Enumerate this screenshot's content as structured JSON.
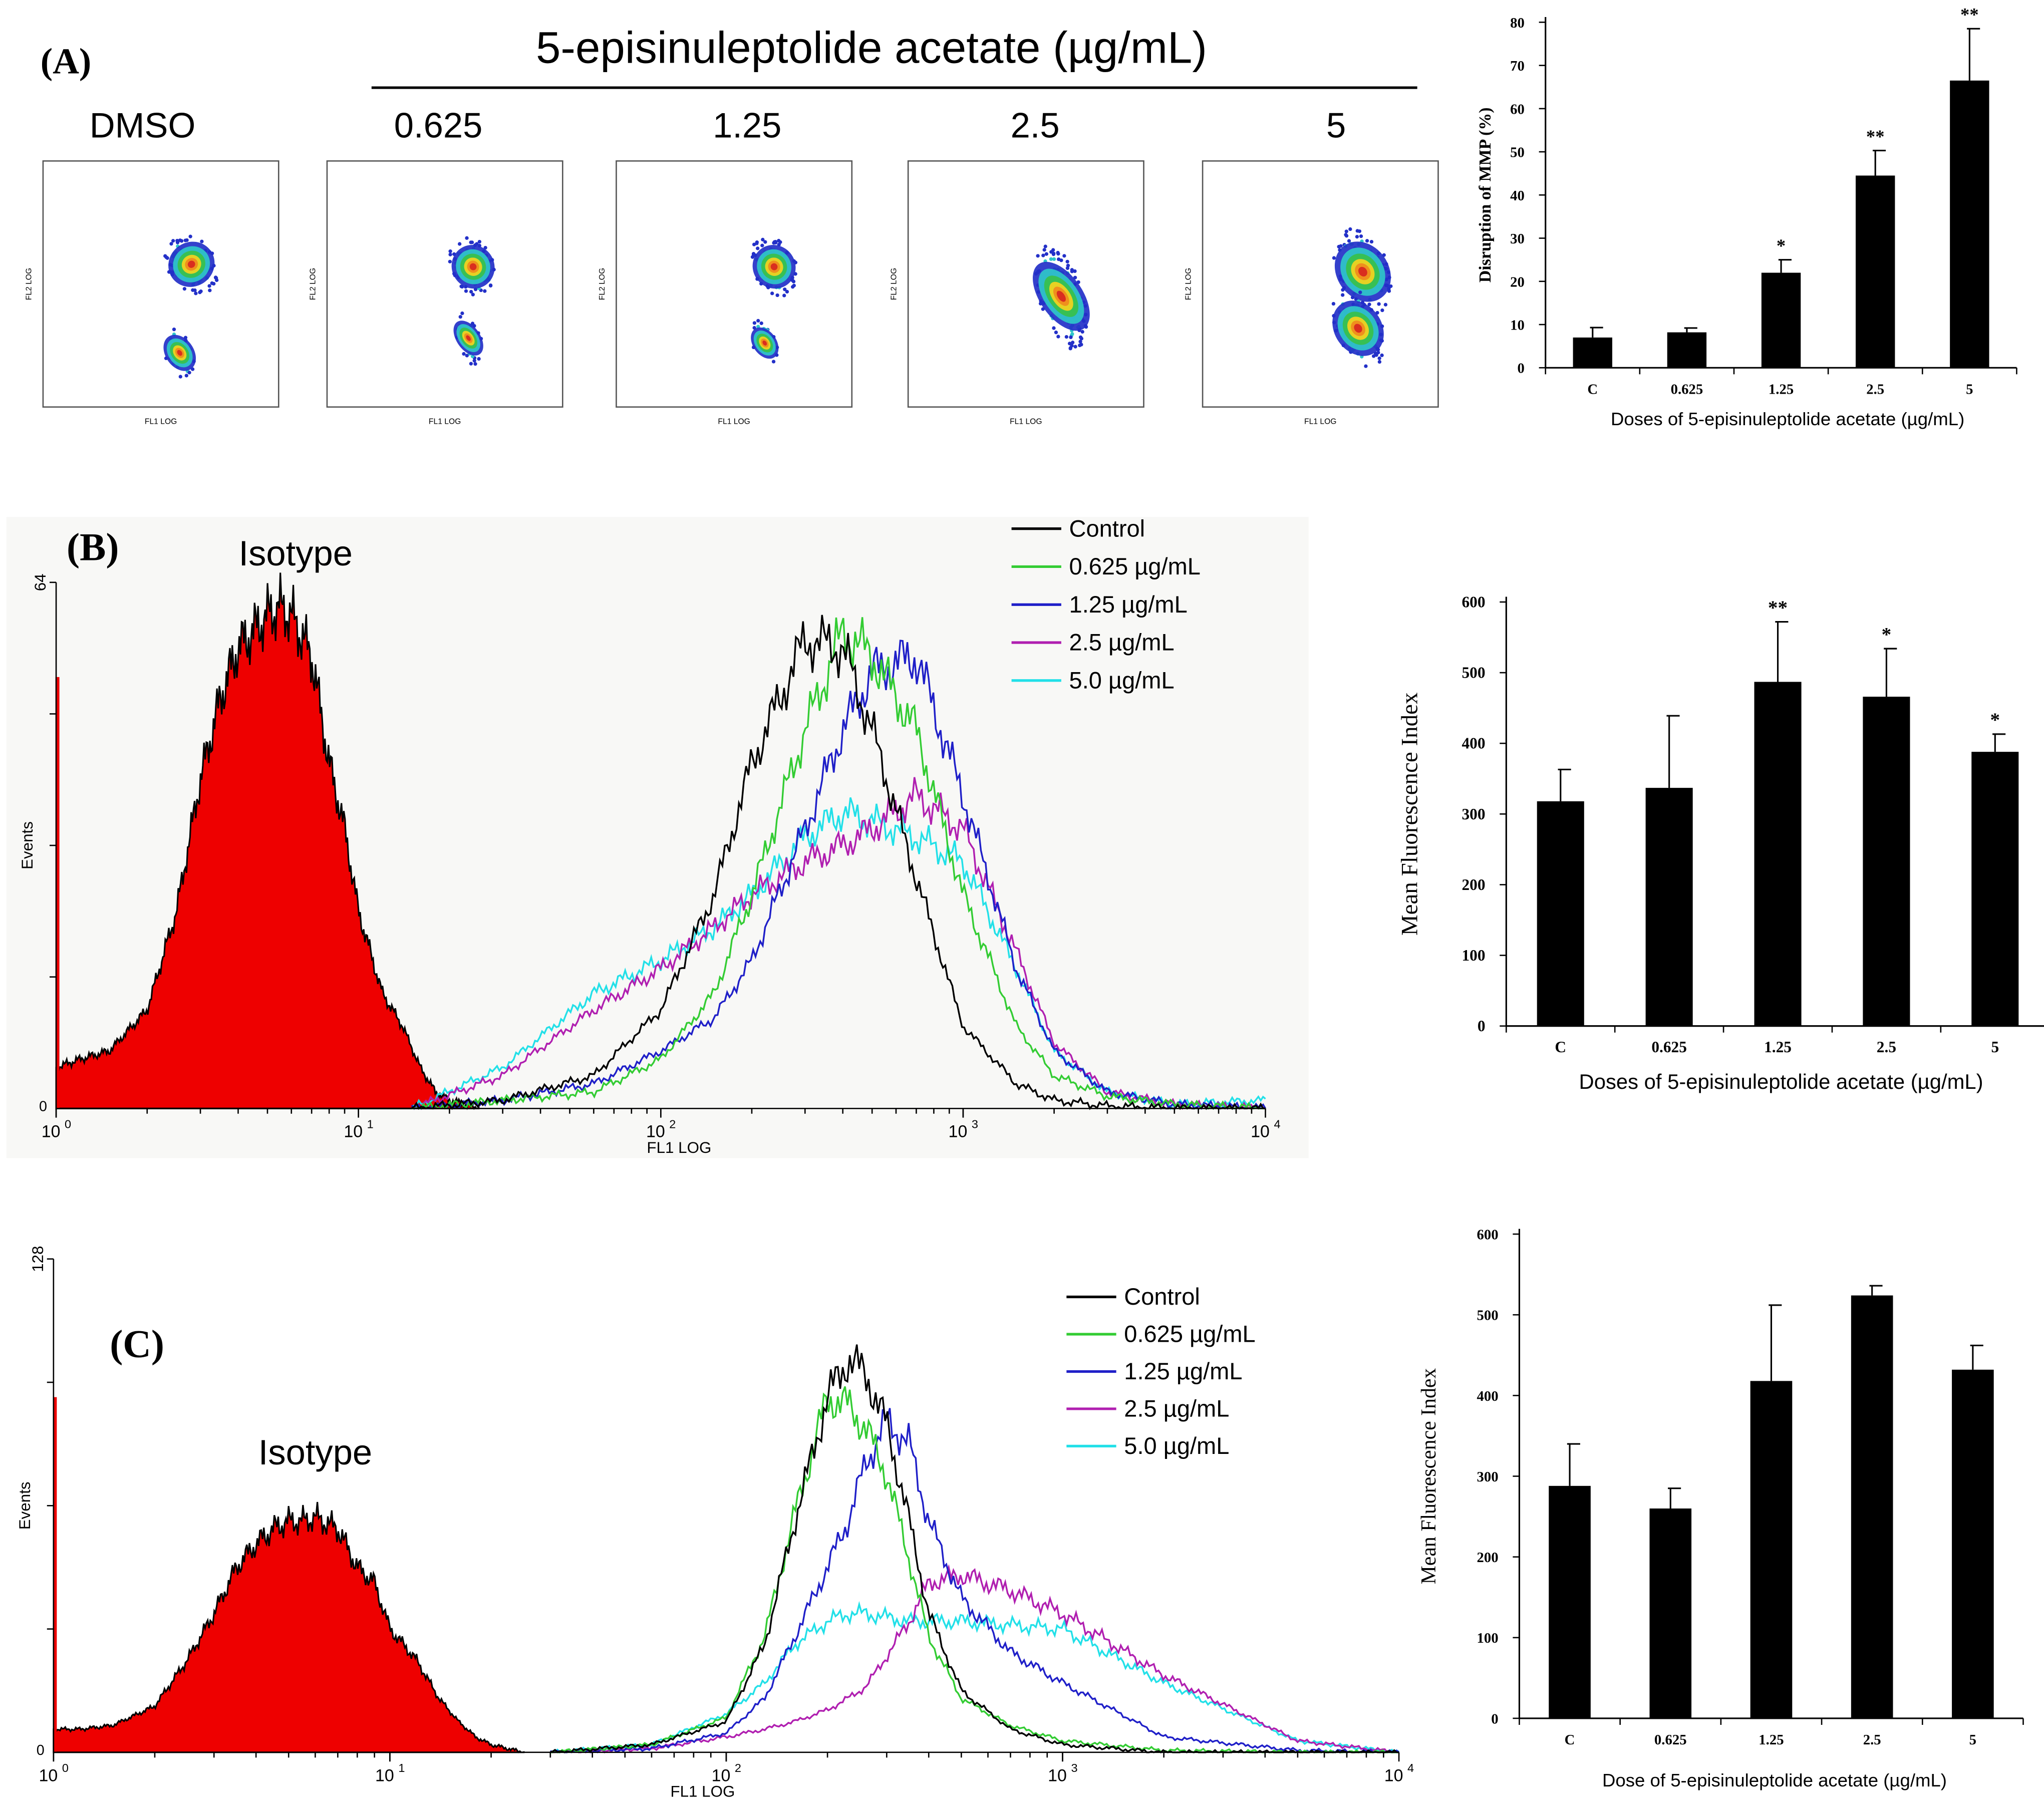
{
  "panel_a": {
    "label": "(A)",
    "title": "5-episinuleptolide acetate (µg/mL)",
    "scatter_labels": [
      "DMSO",
      "0.625",
      "1.25",
      "2.5",
      "5"
    ],
    "scatter_xlabel": "FL1 LOG",
    "scatter_ylabel": "FL2 LOG",
    "density_colors": [
      "#d7261f",
      "#f08a1d",
      "#f5d21f",
      "#38c04a",
      "#2fc7c9",
      "#2330c8"
    ]
  },
  "panel_b": {
    "label": "(B)",
    "isotype_label": "Isotype",
    "hist_ymax": "64",
    "hist_ylabel": "Events",
    "hist_xlabel": "FL1 LOG",
    "legend": [
      "Control",
      "0.625 µg/mL",
      "1.25 µg/mL",
      "2.5 µg/mL",
      "5.0 µg/mL"
    ]
  },
  "panel_c": {
    "label": "(C)",
    "isotype_label": "Isotype",
    "hist_ymax": "128",
    "hist_ylabel": "Events",
    "hist_xlabel": "FL1 LOG",
    "legend": [
      "Control",
      "0.625 µg/mL",
      "1.25 µg/mL",
      "2.5 µg/mL",
      "5.0 µg/mL"
    ]
  },
  "colors": {
    "control": "#000000",
    "c0625": "#33cc33",
    "c125": "#1f1fc8",
    "c25": "#b01fb0",
    "c50": "#22e0e8",
    "isotype": "#ee0000",
    "bar": "#000000"
  },
  "chart_data": [
    {
      "id": "A-bar",
      "type": "bar",
      "title": "",
      "xlabel": "Doses of 5-episinuleptolide acetate (µg/mL)",
      "ylabel": "Disruption of MMP  (%)",
      "ylim": [
        0,
        80
      ],
      "yticks": [
        0,
        10,
        20,
        30,
        40,
        50,
        60,
        70,
        80
      ],
      "categories": [
        "C",
        "0.625",
        "1.25",
        "2.5",
        "5"
      ],
      "values": [
        7,
        8.2,
        22,
        44.5,
        66.5
      ],
      "errors": [
        2.3,
        1,
        3,
        5.8,
        12
      ],
      "annotations": [
        "",
        "",
        "*",
        "**",
        "**"
      ]
    },
    {
      "id": "B-bar",
      "type": "bar",
      "title": "",
      "xlabel": "Doses of 5-episinuleptolide acetate (µg/mL)",
      "ylabel": "Mean Fluorescence Index",
      "ylim": [
        0,
        600
      ],
      "yticks": [
        0,
        100,
        200,
        300,
        400,
        500,
        600
      ],
      "categories": [
        "C",
        "0.625",
        "1.25",
        "2.5",
        "5"
      ],
      "values": [
        318,
        337,
        487,
        466,
        388
      ],
      "errors": [
        45,
        102,
        85,
        68,
        25
      ],
      "annotations": [
        "",
        "",
        "**",
        "*",
        "*"
      ]
    },
    {
      "id": "C-bar",
      "type": "bar",
      "title": "",
      "xlabel": "Dose of 5-episinuleptolide acetate (µg/mL)",
      "ylabel": "Mean Fluorescence Index",
      "ylim": [
        0,
        600
      ],
      "yticks": [
        0,
        100,
        200,
        300,
        400,
        500,
        600
      ],
      "categories": [
        "C",
        "0.625",
        "1.25",
        "2.5",
        "5"
      ],
      "values": [
        288,
        260,
        418,
        524,
        432
      ],
      "errors": [
        52,
        25,
        94,
        12,
        30
      ],
      "annotations": [
        "",
        "",
        "",
        "",
        ""
      ]
    },
    {
      "id": "B-hist",
      "type": "line",
      "title": "",
      "xlabel": "FL1 LOG",
      "ylabel": "Events",
      "xscale": "log",
      "xlim": [
        1,
        10000
      ],
      "xticks": [
        1,
        10,
        100,
        1000,
        10000
      ],
      "ylim": [
        0,
        64
      ],
      "series": [
        {
          "name": "Isotype",
          "x": [
            1,
            1.2,
            1.5,
            2,
            2.5,
            3,
            3.5,
            4,
            4.5,
            5,
            5.5,
            6,
            7,
            8,
            9,
            10,
            12,
            14,
            16,
            18,
            20,
            25
          ],
          "y": [
            5,
            6,
            7,
            12,
            24,
            40,
            50,
            56,
            58,
            60,
            61,
            60,
            55,
            42,
            34,
            24,
            14,
            10,
            5,
            2,
            1,
            0
          ]
        },
        {
          "name": "Control",
          "x": [
            15,
            30,
            60,
            100,
            150,
            200,
            300,
            400,
            500,
            700,
            1000,
            1500,
            2000,
            3000,
            5000,
            10000
          ],
          "y": [
            0,
            1,
            4,
            12,
            26,
            42,
            57,
            56,
            46,
            28,
            10,
            3,
            1,
            0.3,
            0,
            0
          ]
        },
        {
          "name": "0.625 µg/mL",
          "x": [
            15,
            30,
            60,
            100,
            150,
            200,
            300,
            400,
            500,
            700,
            1000,
            1500,
            2000,
            3000,
            5000,
            10000
          ],
          "y": [
            0,
            1,
            2,
            6,
            14,
            26,
            46,
            58,
            55,
            46,
            26,
            10,
            4,
            1.5,
            0.5,
            0
          ]
        },
        {
          "name": "1.25 µg/mL",
          "x": [
            15,
            30,
            60,
            100,
            150,
            200,
            300,
            400,
            500,
            700,
            1000,
            1500,
            2000,
            3000,
            5000,
            10000
          ],
          "y": [
            0,
            1,
            3,
            7,
            11,
            18,
            34,
            46,
            53,
            55,
            38,
            17,
            7,
            2,
            0.5,
            0
          ]
        },
        {
          "name": "2.5 µg/mL",
          "x": [
            15,
            30,
            60,
            100,
            150,
            200,
            300,
            400,
            500,
            700,
            1000,
            1500,
            2000,
            3000,
            5000,
            10000
          ],
          "y": [
            0,
            4,
            12,
            17,
            22,
            26,
            30,
            32,
            34,
            38,
            34,
            19,
            8,
            2,
            0.5,
            0
          ]
        },
        {
          "name": "5.0 µg/mL",
          "x": [
            15,
            30,
            60,
            100,
            150,
            200,
            300,
            400,
            500,
            700,
            1000,
            1500,
            2000,
            3000,
            5000,
            10000
          ],
          "y": [
            0,
            5,
            14,
            18,
            22,
            26,
            33,
            36,
            35,
            33,
            30,
            17,
            7,
            2,
            0.5,
            1
          ]
        }
      ]
    },
    {
      "id": "C-hist",
      "type": "line",
      "title": "",
      "xlabel": "FL1 LOG",
      "ylabel": "Events",
      "xscale": "log",
      "xlim": [
        1,
        10000
      ],
      "xticks": [
        1,
        10,
        100,
        1000,
        10000
      ],
      "ylim": [
        0,
        128
      ],
      "series": [
        {
          "name": "Isotype",
          "x": [
            1,
            1.2,
            1.5,
            2,
            2.5,
            3,
            3.5,
            4,
            4.5,
            5,
            5.5,
            6,
            7,
            8,
            9,
            10,
            12,
            14,
            16,
            18,
            20,
            25
          ],
          "y": [
            6,
            6,
            7,
            12,
            24,
            36,
            48,
            54,
            58,
            60,
            60,
            61,
            58,
            48,
            44,
            32,
            24,
            14,
            8,
            4,
            2,
            0
          ]
        },
        {
          "name": "Control",
          "x": [
            30,
            60,
            100,
            130,
            160,
            200,
            230,
            260,
            300,
            350,
            400,
            500,
            700,
            1000,
            2000,
            5000,
            10000
          ],
          "y": [
            0,
            2,
            8,
            28,
            60,
            92,
            102,
            98,
            85,
            60,
            36,
            16,
            6,
            2,
            0,
            0,
            0
          ]
        },
        {
          "name": "0.625 µg/mL",
          "x": [
            30,
            60,
            100,
            130,
            160,
            200,
            230,
            260,
            300,
            350,
            400,
            500,
            700,
            1000,
            2000,
            5000,
            10000
          ],
          "y": [
            0,
            2,
            9,
            30,
            62,
            92,
            90,
            84,
            72,
            50,
            30,
            14,
            7,
            3,
            0.5,
            0,
            0
          ]
        },
        {
          "name": "1.25 µg/mL",
          "x": [
            30,
            60,
            100,
            130,
            160,
            200,
            230,
            260,
            300,
            350,
            400,
            500,
            700,
            1000,
            2000,
            5000,
            10000
          ],
          "y": [
            0,
            1,
            5,
            14,
            30,
            48,
            60,
            75,
            86,
            80,
            60,
            40,
            26,
            18,
            4,
            0.5,
            0
          ]
        },
        {
          "name": "2.5 µg/mL",
          "x": [
            30,
            60,
            100,
            130,
            160,
            200,
            230,
            260,
            300,
            350,
            400,
            500,
            700,
            1000,
            2000,
            5000,
            10000
          ],
          "y": [
            0,
            1,
            4,
            6,
            8,
            11,
            14,
            17,
            25,
            34,
            44,
            46,
            42,
            36,
            20,
            3,
            0
          ]
        },
        {
          "name": "5.0 µg/mL",
          "x": [
            30,
            60,
            100,
            130,
            160,
            200,
            230,
            260,
            300,
            350,
            400,
            500,
            700,
            1000,
            2000,
            5000,
            10000
          ],
          "y": [
            0,
            2,
            10,
            18,
            28,
            34,
            36,
            36,
            35,
            34,
            34,
            34,
            33,
            32,
            18,
            3,
            0
          ]
        }
      ]
    }
  ]
}
